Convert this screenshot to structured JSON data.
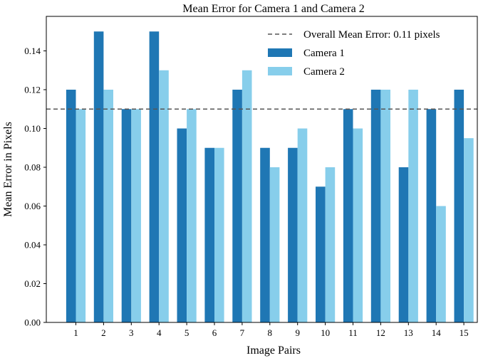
{
  "chart_data": {
    "type": "bar",
    "title": "Mean Error for Camera 1 and Camera 2",
    "xlabel": "Image Pairs",
    "ylabel": "Mean Error in Pixels",
    "categories": [
      "1",
      "2",
      "3",
      "4",
      "5",
      "6",
      "7",
      "8",
      "9",
      "10",
      "11",
      "12",
      "13",
      "14",
      "15"
    ],
    "series": [
      {
        "name": "Camera 1",
        "color": "#1f77b4",
        "values": [
          0.12,
          0.15,
          0.11,
          0.15,
          0.1,
          0.09,
          0.12,
          0.09,
          0.09,
          0.07,
          0.11,
          0.12,
          0.08,
          0.11,
          0.12
        ]
      },
      {
        "name": "Camera 2",
        "color": "#87ceeb",
        "values": [
          0.11,
          0.12,
          0.11,
          0.13,
          0.11,
          0.09,
          0.13,
          0.08,
          0.1,
          0.08,
          0.1,
          0.12,
          0.12,
          0.06,
          0.095
        ]
      }
    ],
    "reference_line": {
      "label": "Overall Mean Error: 0.11 pixels",
      "value": 0.11,
      "color": "#555555",
      "style": "dashed"
    },
    "ylim": [
      0,
      0.15
    ],
    "yticks": [
      "0.00",
      "0.02",
      "0.04",
      "0.06",
      "0.08",
      "0.10",
      "0.12",
      "0.14"
    ],
    "grid": false,
    "legend_position": "top-right"
  }
}
